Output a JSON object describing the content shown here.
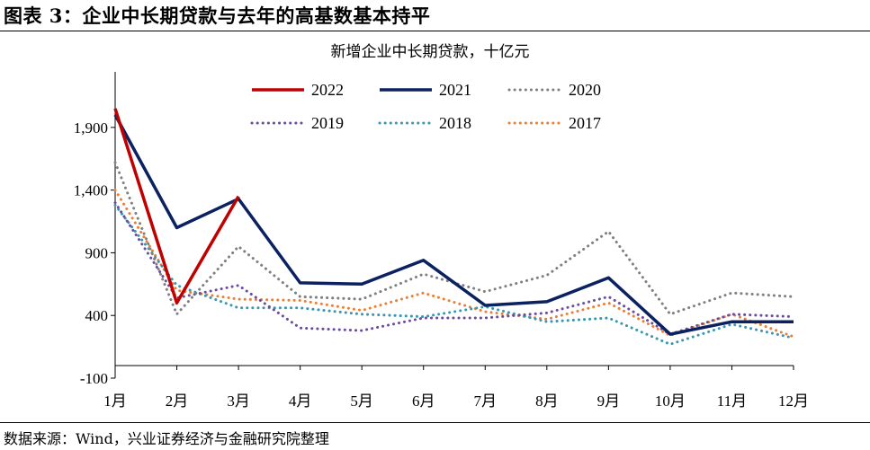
{
  "figure": {
    "title": "图表 3：企业中长期贷款与去年的高基数基本持平",
    "source": "数据来源：Wind，兴业证券经济与金融研究院整理"
  },
  "chart_data": {
    "type": "line",
    "title": "新增企业中长期贷款，十亿元",
    "categories": [
      "1月",
      "2月",
      "3月",
      "4月",
      "5月",
      "6月",
      "7月",
      "8月",
      "9月",
      "10月",
      "11月",
      "12月"
    ],
    "yticks": [
      -100,
      400,
      900,
      1400,
      1900
    ],
    "ytick_labels": [
      "-100",
      "400",
      "900",
      "1,400",
      "1,900"
    ],
    "ylim": [
      -100,
      2300
    ],
    "legend_position": "top-center",
    "series": [
      {
        "name": "2022",
        "color": "#c00000",
        "style": "solid",
        "width": 3.5,
        "values": [
          2050,
          500,
          1350,
          null,
          null,
          null,
          null,
          null,
          null,
          null,
          null,
          null
        ]
      },
      {
        "name": "2021",
        "color": "#0b2160",
        "style": "solid",
        "width": 3.5,
        "values": [
          2000,
          1100,
          1330,
          660,
          650,
          840,
          480,
          510,
          700,
          250,
          350,
          350
        ]
      },
      {
        "name": "2020",
        "color": "#7f7f7f",
        "style": "dotted",
        "width": 3,
        "values": [
          1620,
          410,
          950,
          550,
          530,
          730,
          590,
          720,
          1070,
          410,
          580,
          550
        ]
      },
      {
        "name": "2019",
        "color": "#6a4c9c",
        "style": "dotted",
        "width": 3,
        "values": [
          1300,
          540,
          640,
          300,
          280,
          380,
          380,
          420,
          550,
          250,
          410,
          390
        ]
      },
      {
        "name": "2018",
        "color": "#3a96b0",
        "style": "dotted",
        "width": 3,
        "values": [
          1280,
          640,
          460,
          460,
          410,
          390,
          470,
          350,
          380,
          170,
          330,
          220
        ]
      },
      {
        "name": "2017",
        "color": "#ed7d31",
        "style": "dotted",
        "width": 3,
        "values": [
          1400,
          600,
          530,
          520,
          440,
          580,
          430,
          370,
          500,
          240,
          410,
          230
        ]
      }
    ]
  }
}
